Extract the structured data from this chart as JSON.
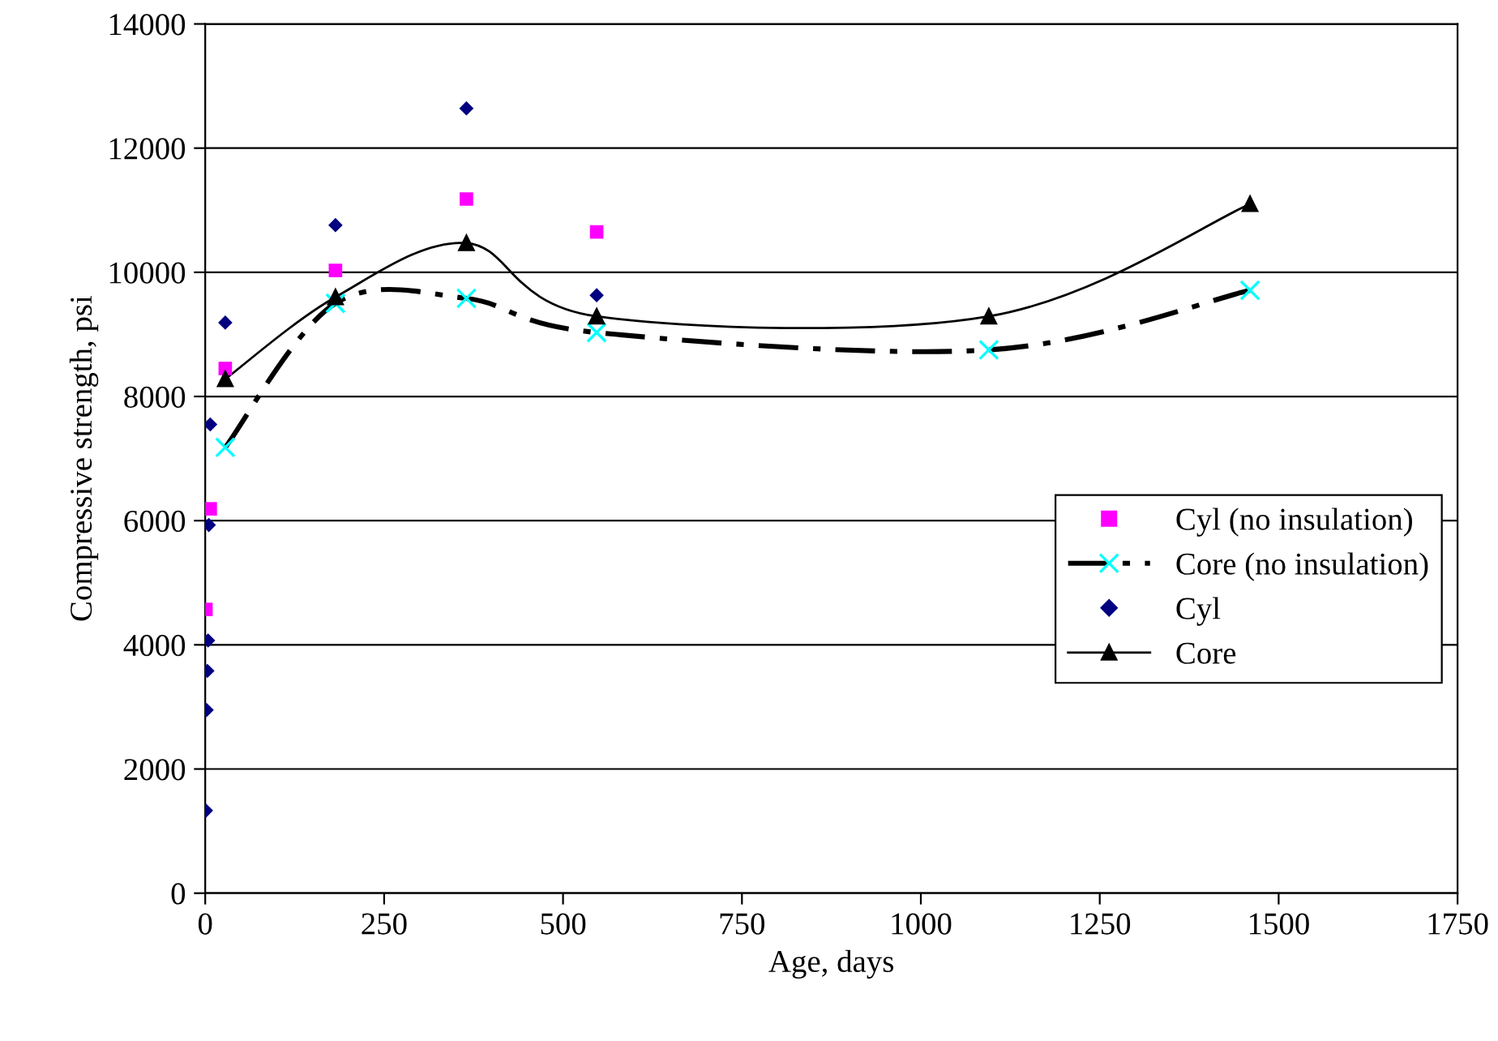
{
  "chart_data": {
    "type": "scatter",
    "xlabel": "Age, days",
    "ylabel": "Compressive strength, psi",
    "xlim": [
      0,
      1750
    ],
    "xticks": [
      0,
      250,
      500,
      750,
      1000,
      1250,
      1500,
      1750
    ],
    "ylim": [
      0,
      14000
    ],
    "yticks": [
      0,
      2000,
      4000,
      6000,
      8000,
      10000,
      12000,
      14000
    ],
    "grid": "y",
    "legend": "right",
    "series": [
      {
        "name": "Cyl (no insulation)",
        "marker": "square",
        "color": "#ff00ff",
        "x": [
          1,
          7,
          28,
          182,
          365,
          547
        ],
        "values": [
          4570,
          6190,
          8450,
          10030,
          11180,
          10650
        ]
      },
      {
        "name": "Core (no insulation)",
        "type": "line",
        "marker": "cross",
        "line_style": "dashdot",
        "color": "#00ffff",
        "x": [
          28,
          182,
          365,
          547,
          1095,
          1460
        ],
        "values": [
          7180,
          9500,
          9580,
          9030,
          8750,
          9710
        ]
      },
      {
        "name": "Cyl",
        "marker": "diamond",
        "color": "#000080",
        "x": [
          1,
          2,
          3,
          4,
          5,
          7,
          28,
          182,
          365,
          547
        ],
        "values": [
          1330,
          2950,
          3580,
          4070,
          5930,
          7550,
          9190,
          10760,
          12640,
          9630
        ]
      },
      {
        "name": "Core",
        "type": "line",
        "marker": "triangle",
        "line_style": "solid",
        "color": "#000000",
        "x": [
          28,
          182,
          365,
          547,
          1095,
          1460
        ],
        "values": [
          8280,
          9600,
          10470,
          9290,
          9290,
          11100
        ]
      }
    ]
  }
}
